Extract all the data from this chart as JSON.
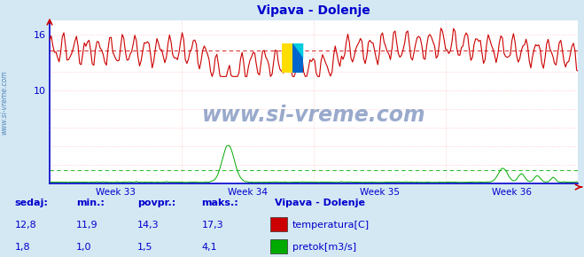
{
  "title": "Vipava - Dolenje",
  "title_color": "#0000cc",
  "bg_color": "#d4e8f4",
  "plot_bg_color": "#ffffff",
  "grid_color": "#ffcccc",
  "axis_color": "#0000cc",
  "tick_color": "#0000cc",
  "temp_color": "#cc0000",
  "flow_color": "#00aa00",
  "avg_temp": 14.3,
  "avg_flow": 1.5,
  "watermark": "www.si-vreme.com",
  "watermark_color": "#99aacc",
  "legend_title": "Vipava - Dolenje",
  "legend_title_color": "#0000cc",
  "stats_labels": [
    "sedaj:",
    "min.:",
    "povpr.:",
    "maks.:"
  ],
  "stats_temp": [
    "12,8",
    "11,9",
    "14,3",
    "17,3"
  ],
  "stats_flow": [
    "1,8",
    "1,0",
    "1,5",
    "4,1"
  ],
  "legend_items": [
    "temperatura[C]",
    "pretok[m3/s]"
  ],
  "legend_colors": [
    "#cc0000",
    "#00aa00"
  ],
  "ylim": [
    0,
    17.5
  ],
  "ytick_vals": [
    10,
    16
  ],
  "week_labels": [
    "Week 33",
    "Week 34",
    "Week 35",
    "Week 36"
  ],
  "n_points": 336,
  "flow_spike_week34": 4.1,
  "flow_spike_week36": 1.8
}
